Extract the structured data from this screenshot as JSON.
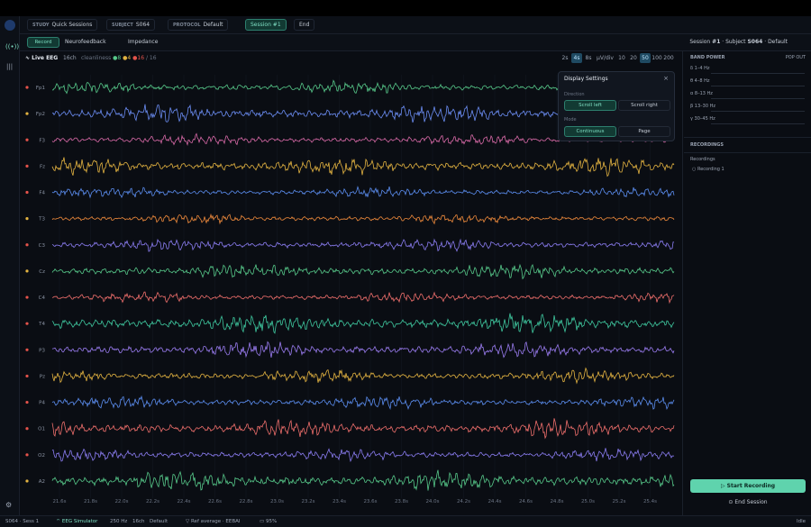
{
  "topbar": {
    "study_label": "STUDY",
    "study": "Quick Sessions",
    "subject_label": "SUBJECT",
    "subject": "S064",
    "protocol_label": "PROTOCOL",
    "protocol": "Default",
    "session_button": "Session #1",
    "end_button": "End"
  },
  "toolbar": {
    "tabs": [
      "Record",
      "Neurofeedback",
      "Impedance"
    ],
    "session_label": "Session",
    "session": "#1",
    "subject_label": "Subject",
    "subject": "S064",
    "protocol": "Default"
  },
  "eeg": {
    "title": "Live EEG",
    "channel_count": "16ch",
    "cleanliness_label": "cleanliness",
    "good": "8",
    "warn": "4",
    "total": "16",
    "slash": "/",
    "of": "16",
    "windows": [
      "2s",
      "4s",
      "8s"
    ],
    "window_active": 1,
    "scale_label": "µV/div",
    "scales": [
      "10",
      "20",
      "50",
      "100",
      "200"
    ],
    "scale_active": 2,
    "channels": [
      {
        "name": "Fp1",
        "status_color": "#e5534b",
        "trace_color": "#57c98a"
      },
      {
        "name": "Fp2",
        "status_color": "#e3b341",
        "trace_color": "#6c8ef5"
      },
      {
        "name": "F3",
        "status_color": "#e5534b",
        "trace_color": "#d96aa8"
      },
      {
        "name": "Fz",
        "status_color": "#e5534b",
        "trace_color": "#e3b341"
      },
      {
        "name": "F4",
        "status_color": "#e5534b",
        "trace_color": "#5b8def"
      },
      {
        "name": "T3",
        "status_color": "#e3b341",
        "trace_color": "#ee8a3c"
      },
      {
        "name": "C3",
        "status_color": "#e5534b",
        "trace_color": "#8a7cf0"
      },
      {
        "name": "Cz",
        "status_color": "#e3b341",
        "trace_color": "#57c98a"
      },
      {
        "name": "C4",
        "status_color": "#e5534b",
        "trace_color": "#ef6f6c"
      },
      {
        "name": "T4",
        "status_color": "#e5534b",
        "trace_color": "#3fc9a0"
      },
      {
        "name": "P3",
        "status_color": "#e5534b",
        "trace_color": "#9a7cf0"
      },
      {
        "name": "Pz",
        "status_color": "#e5534b",
        "trace_color": "#e3b341"
      },
      {
        "name": "P4",
        "status_color": "#e5534b",
        "trace_color": "#5b8def"
      },
      {
        "name": "O1",
        "status_color": "#e5534b",
        "trace_color": "#ef6f6c"
      },
      {
        "name": "O2",
        "status_color": "#e5534b",
        "trace_color": "#8a7cf0"
      },
      {
        "name": "A2",
        "status_color": "#e3b341",
        "trace_color": "#57c98a"
      }
    ],
    "time_ticks": [
      "21.6s",
      "21.8s",
      "22.0s",
      "22.2s",
      "22.4s",
      "22.6s",
      "22.8s",
      "23.0s",
      "23.2s",
      "23.4s",
      "23.6s",
      "23.8s",
      "24.0s",
      "24.2s",
      "24.4s",
      "24.6s",
      "24.8s",
      "25.0s",
      "25.2s",
      "25.4s"
    ]
  },
  "display_settings": {
    "title": "Display Settings",
    "close": "×",
    "direction_label": "Direction",
    "direction_options": [
      "Scroll left",
      "Scroll right"
    ],
    "mode_label": "Mode",
    "mode_options": [
      "Continuous",
      "Page"
    ]
  },
  "side_panel": {
    "band_title": "BAND POWER",
    "pop_out": "POP OUT",
    "bands": [
      "δ 1–4 Hz",
      "θ 4–8 Hz",
      "α 8–13 Hz",
      "β 13–30 Hz",
      "γ 30–45 Hz"
    ],
    "recordings_title": "RECORDINGS",
    "recordings_label": "Recordings",
    "recordings": [
      "Recording 1"
    ],
    "start_button": "Start Recording",
    "end_button": "End Session"
  },
  "statusbar": {
    "session": "S064 · Sess 1",
    "device": "EEG Simulator",
    "rate": "250 Hz",
    "channels": "16ch",
    "protocol": "Default",
    "reference": "Ref average · EEBAI",
    "battery": "95%",
    "state": "Idle"
  }
}
